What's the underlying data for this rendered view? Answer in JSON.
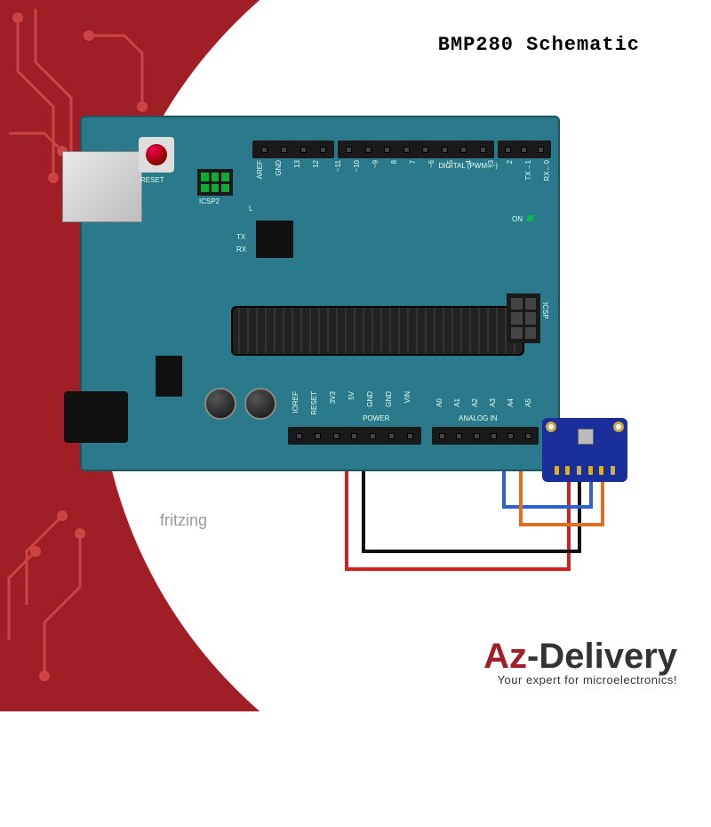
{
  "title": "BMP280 Schematic",
  "fritzing_label": "fritzing",
  "logo": {
    "prefix": "Az",
    "suffix": "-Delivery",
    "tagline": "Your expert for microelectronics!"
  },
  "colors": {
    "brand_red": "#a01e26",
    "board_teal": "#2b7a8c",
    "sensor_blue": "#1b2f9b",
    "wire_red": "#d02020",
    "wire_black": "#111111",
    "wire_orange": "#e07020",
    "wire_blue": "#3060d0"
  },
  "board": {
    "labels": {
      "reset": "RESET",
      "icsp2": "ICSP2",
      "icsp": "ICSP",
      "digital": "DIGITAL (PWM=~)",
      "power": "POWER",
      "analog": "ANALOG IN",
      "on": "ON",
      "L": "L",
      "tx": "TX",
      "rx": "RX"
    },
    "digital_pins": [
      "AREF",
      "GND",
      "13",
      "12",
      "~11",
      "~10",
      "~9",
      "8",
      "7",
      "~6",
      "~5",
      "4",
      "~3",
      "2",
      "TX→1",
      "RX←0"
    ],
    "power_pins": [
      "IOREF",
      "RESET",
      "3V3",
      "5V",
      "GND",
      "GND",
      "VIN"
    ],
    "analog_pins": [
      "A0",
      "A1",
      "A2",
      "A3",
      "A4",
      "A5"
    ]
  },
  "sensor": {
    "name": "BMP280",
    "pin_count": 6
  },
  "wiring": [
    {
      "from": "5V",
      "to": "VCC",
      "color": "#d02020"
    },
    {
      "from": "GND",
      "to": "GND",
      "color": "#111111"
    },
    {
      "from": "A4",
      "to": "SDA",
      "color": "#3060d0"
    },
    {
      "from": "A5",
      "to": "SCL",
      "color": "#e07020"
    }
  ]
}
